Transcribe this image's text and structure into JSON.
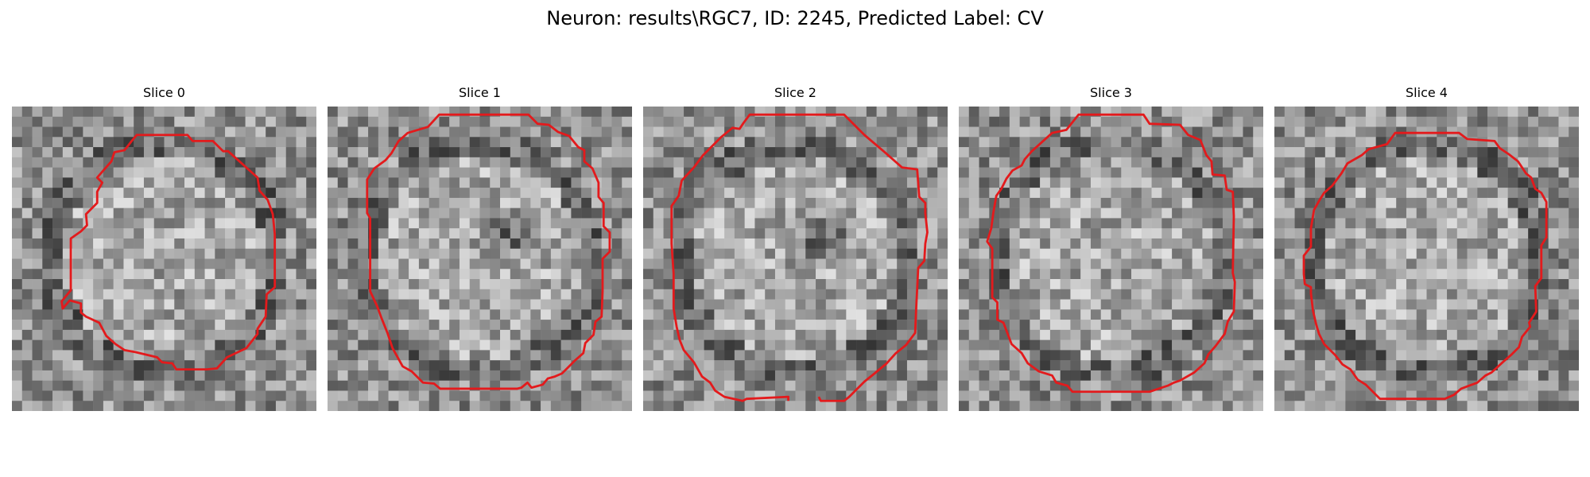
{
  "figure": {
    "title": "Neuron: results\\RGC7, ID: 2245, Predicted Label: CV",
    "contour_color": "#e31a1c"
  },
  "panels": [
    {
      "title": "Slice 0",
      "dark_center": false
    },
    {
      "title": "Slice 1",
      "dark_center": true
    },
    {
      "title": "Slice 2",
      "dark_center": true
    },
    {
      "title": "Slice 3",
      "dark_center": false
    },
    {
      "title": "Slice 4",
      "dark_center": false
    }
  ]
}
